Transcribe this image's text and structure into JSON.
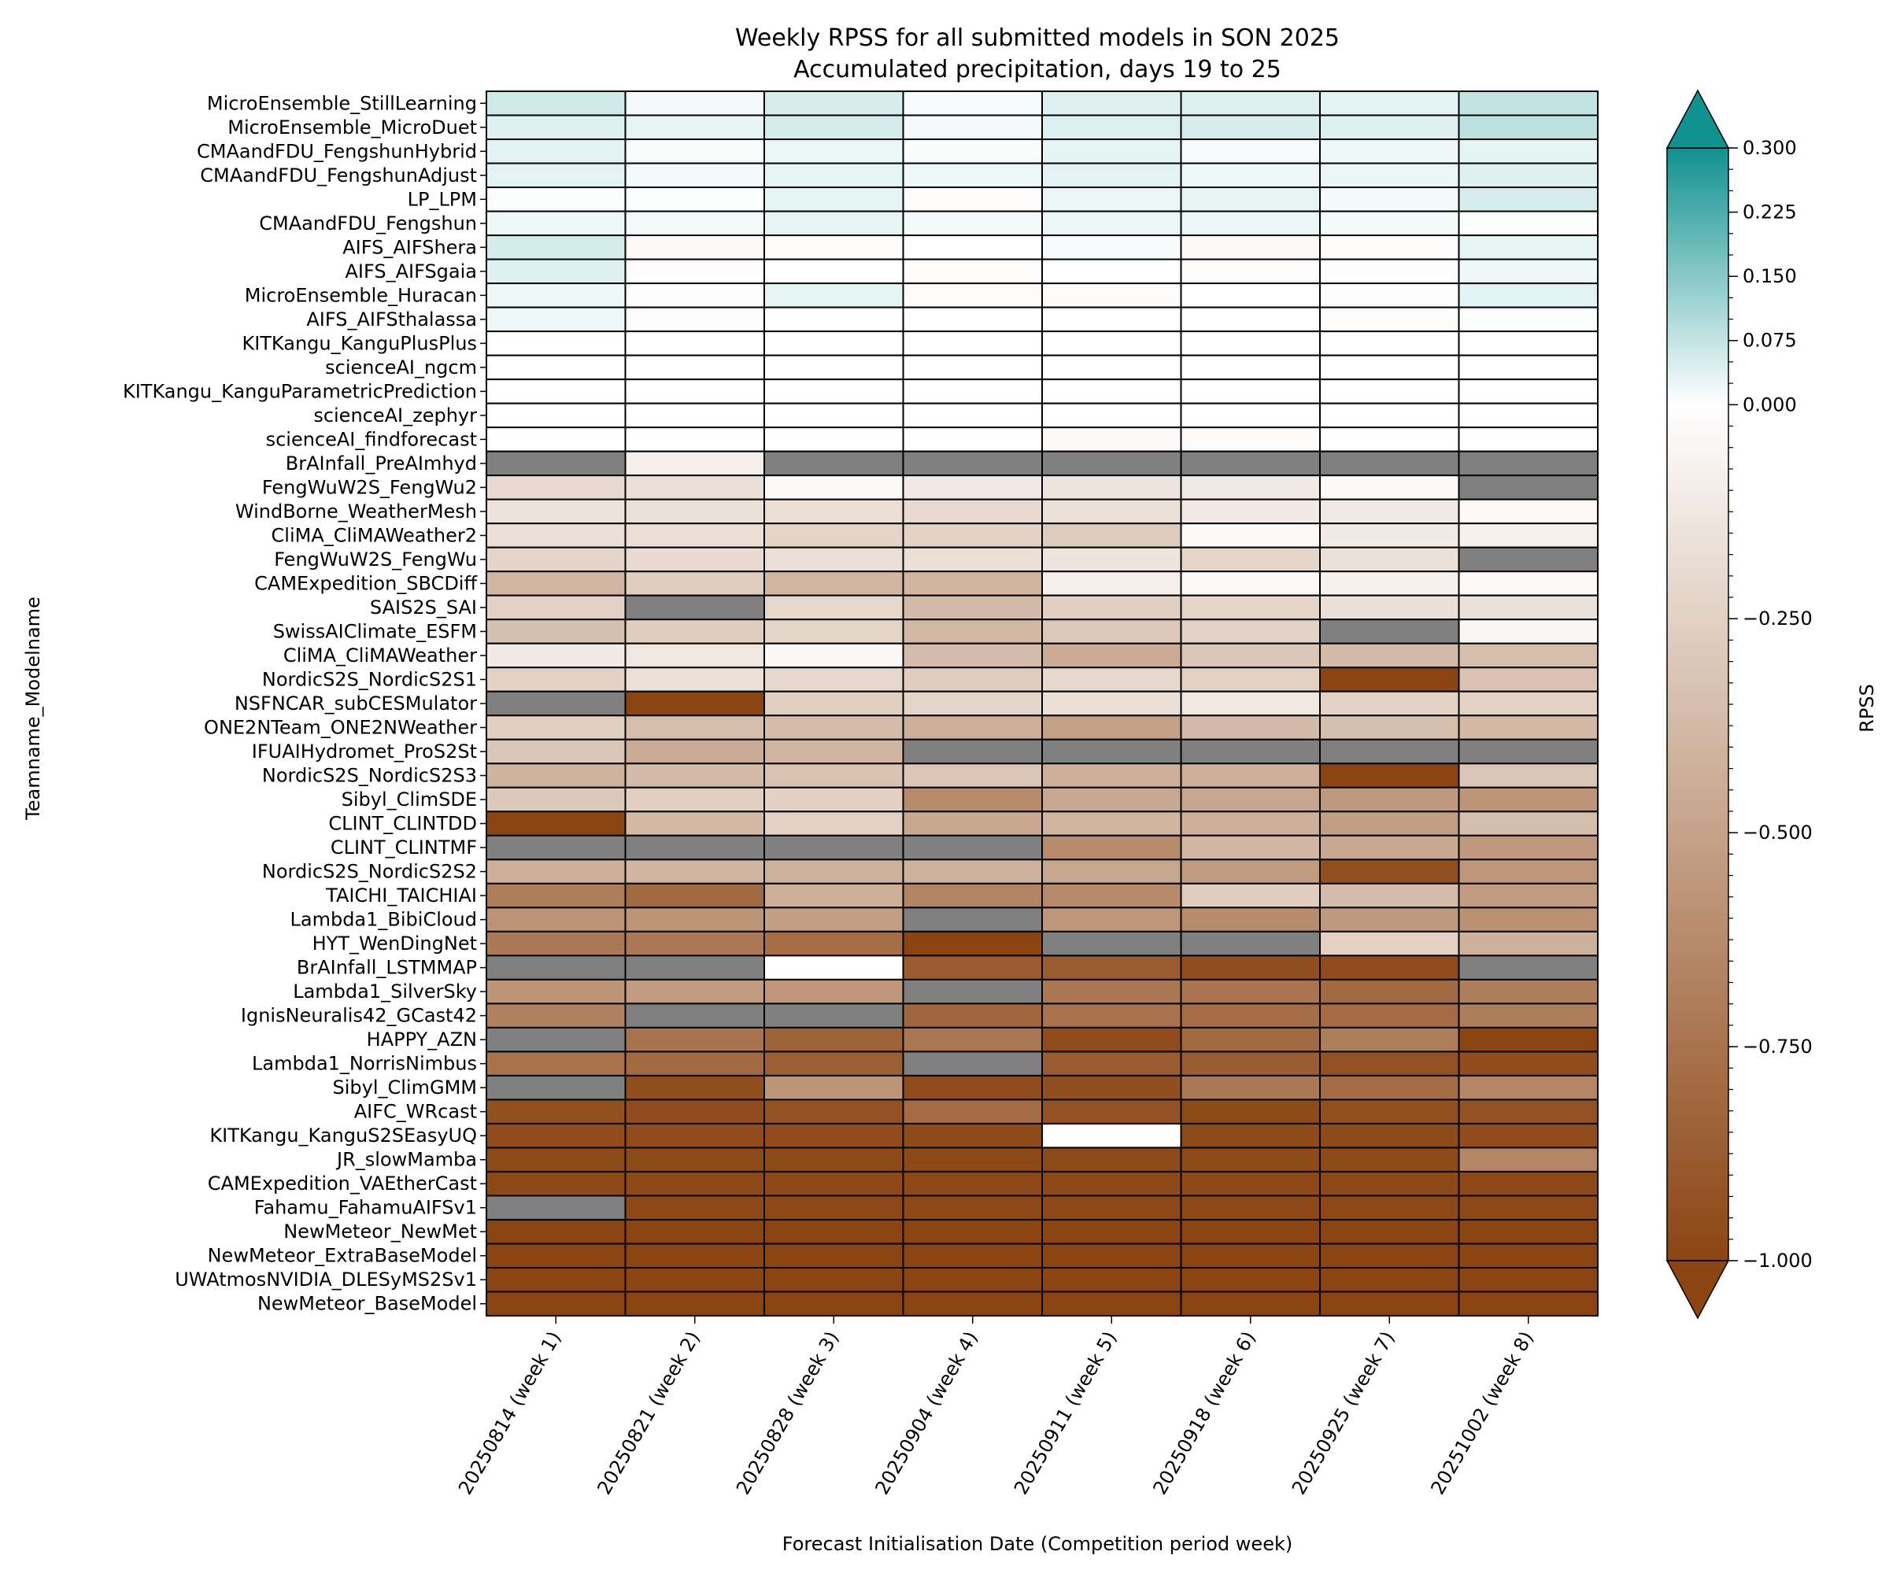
{
  "chart_data": {
    "type": "heatmap",
    "title": "Weekly RPSS for all submitted models in SON 2025",
    "subtitle": "Accumulated precipitation, days 19 to 25",
    "xlabel": "Forecast Initialisation Date (Competition period week)",
    "ylabel": "Teamname_Modelname",
    "colorbar_label": "RPSS",
    "colorbar_ticks": [
      "0.300",
      "0.225",
      "0.150",
      "0.075",
      "0.000",
      "−0.250",
      "−0.500",
      "−0.750",
      "−1.000"
    ],
    "colorbar_tick_values": [
      0.3,
      0.225,
      0.15,
      0.075,
      0.0,
      -0.25,
      -0.5,
      -0.75,
      -1.0
    ],
    "colorbar_range": [
      -1.0,
      0.3
    ],
    "missing_color": "#808080",
    "colors": {
      "positive_max": "#119190",
      "zero": "#ffffff",
      "negative_min": "#8b4513",
      "grid": "#000000"
    },
    "columns": [
      "20250814 (week 1)",
      "20250821 (week 2)",
      "20250828 (week 3)",
      "20250904 (week 4)",
      "20250911 (week 5)",
      "20250918 (week 6)",
      "20250925 (week 7)",
      "20251002 (week 8)"
    ],
    "rows": [
      "MicroEnsemble_StillLearning",
      "MicroEnsemble_MicroDuet",
      "CMAandFDU_FengshunHybrid",
      "CMAandFDU_FengshunAdjust",
      "LP_LPM",
      "CMAandFDU_Fengshun",
      "AIFS_AIFShera",
      "AIFS_AIFSgaia",
      "MicroEnsemble_Huracan",
      "AIFS_AIFSthalassa",
      "KITKangu_KanguPlusPlus",
      "scienceAI_ngcm",
      "KITKangu_KanguParametricPrediction",
      "scienceAI_zephyr",
      "scienceAI_findforecast",
      "BrAInfall_PreAImhyd",
      "FengWuW2S_FengWu2",
      "WindBorne_WeatherMesh",
      "CliMA_CliMAWeather2",
      "FengWuW2S_FengWu",
      "CAMExpedition_SBCDiff",
      "SAIS2S_SAI",
      "SwissAIClimate_ESFM",
      "CliMA_CliMAWeather",
      "NordicS2S_NordicS2S1",
      "NSFNCAR_subCESMulator",
      "ONE2NTeam_ONE2NWeather",
      "IFUAIHydromet_ProS2St",
      "NordicS2S_NordicS2S3",
      "Sibyl_ClimSDE",
      "CLINT_CLINTDD",
      "CLINT_CLINTMF",
      "NordicS2S_NordicS2S2",
      "TAICHI_TAICHIAI",
      "Lambda1_BibiCloud",
      "HYT_WenDingNet",
      "BrAInfall_LSTMMAP",
      "Lambda1_SilverSky",
      "IgnisNeuralis42_GCast42",
      "HAPPY_AZN",
      "Lambda1_NorrisNimbus",
      "Sibyl_ClimGMM",
      "AIFC_WRcast",
      "KITKangu_KanguS2SEasyUQ",
      "JR_slowMamba",
      "CAMExpedition_VAEtherCast",
      "Fahamu_FahamuAIFSv1",
      "NewMeteor_NewMet",
      "NewMeteor_ExtraBaseModel",
      "UWAtmosNVIDIA_DLESyMS2Sv1",
      "NewMeteor_BaseModel"
    ],
    "values": [
      [
        0.06,
        0.015,
        0.05,
        0.01,
        0.04,
        0.045,
        0.035,
        0.075
      ],
      [
        0.04,
        0.03,
        0.055,
        0.015,
        0.045,
        0.05,
        0.04,
        0.085
      ],
      [
        0.035,
        0.005,
        0.025,
        0.005,
        0.03,
        0.01,
        0.02,
        0.03
      ],
      [
        0.035,
        0.015,
        0.03,
        0.02,
        0.035,
        0.02,
        0.025,
        0.04
      ],
      [
        0.005,
        0.005,
        0.03,
        -0.02,
        0.025,
        0.03,
        0.015,
        0.05
      ],
      [
        0.02,
        0.015,
        0.03,
        0.015,
        0.025,
        0.025,
        0.015,
        0.005
      ],
      [
        0.055,
        -0.03,
        -0.02,
        0.0,
        0.01,
        -0.03,
        -0.015,
        0.03
      ],
      [
        0.04,
        -0.01,
        -0.005,
        -0.015,
        0.0,
        -0.015,
        -0.01,
        0.02
      ],
      [
        0.02,
        -0.01,
        0.03,
        -0.02,
        -0.02,
        0.0,
        -0.01,
        0.035
      ],
      [
        0.02,
        -0.01,
        0.0,
        -0.005,
        0.0,
        0.0,
        -0.02,
        0.005
      ],
      [
        0.0,
        0.0,
        0.0,
        0.0,
        0.0,
        0.0,
        0.0,
        0.0
      ],
      [
        0.0,
        0.0,
        0.0,
        0.0,
        0.0,
        0.0,
        0.0,
        0.0
      ],
      [
        0.0,
        0.0,
        0.0,
        0.0,
        0.0,
        0.0,
        0.0,
        0.0
      ],
      [
        0.0,
        0.0,
        0.0,
        0.0,
        0.0,
        0.0,
        0.0,
        0.0
      ],
      [
        0.0,
        0.0,
        0.0,
        0.0,
        -0.03,
        -0.02,
        0.0,
        0.0
      ],
      [
        null,
        -0.09,
        null,
        null,
        null,
        null,
        null,
        null
      ],
      [
        -0.2,
        -0.17,
        -0.03,
        -0.12,
        -0.14,
        -0.11,
        -0.03,
        null
      ],
      [
        -0.15,
        -0.16,
        -0.18,
        -0.2,
        -0.16,
        -0.11,
        -0.12,
        -0.03
      ],
      [
        -0.17,
        -0.18,
        -0.23,
        -0.25,
        -0.28,
        -0.03,
        -0.11,
        -0.08
      ],
      [
        -0.23,
        -0.2,
        -0.17,
        -0.18,
        -0.14,
        -0.22,
        -0.16,
        null
      ],
      [
        -0.39,
        -0.27,
        -0.39,
        -0.4,
        -0.09,
        -0.03,
        -0.08,
        -0.03
      ],
      [
        -0.25,
        null,
        -0.21,
        -0.37,
        -0.26,
        -0.23,
        -0.17,
        -0.16
      ],
      [
        -0.34,
        -0.27,
        -0.23,
        -0.38,
        -0.3,
        -0.24,
        null,
        -0.05
      ],
      [
        -0.11,
        -0.13,
        -0.04,
        -0.36,
        -0.45,
        -0.31,
        -0.37,
        -0.35
      ],
      [
        -0.25,
        -0.16,
        -0.21,
        -0.27,
        -0.21,
        -0.25,
        -1.0,
        -0.33
      ],
      [
        null,
        -1.0,
        -0.26,
        -0.23,
        -0.18,
        -0.13,
        -0.24,
        -0.25
      ],
      [
        -0.26,
        -0.35,
        -0.36,
        -0.43,
        -0.51,
        -0.37,
        -0.34,
        -0.38
      ],
      [
        -0.31,
        -0.45,
        -0.4,
        null,
        null,
        null,
        null,
        null
      ],
      [
        -0.41,
        -0.37,
        -0.33,
        -0.31,
        -0.43,
        -0.43,
        -1.0,
        -0.31
      ],
      [
        -0.29,
        -0.26,
        -0.25,
        -0.62,
        -0.47,
        -0.48,
        -0.55,
        -0.57
      ],
      [
        -1.0,
        -0.38,
        -0.25,
        -0.47,
        -0.4,
        -0.43,
        -0.52,
        -0.35
      ],
      [
        null,
        null,
        null,
        null,
        -0.62,
        -0.39,
        -0.47,
        -0.55
      ],
      [
        -0.43,
        -0.4,
        -0.42,
        -0.42,
        -0.48,
        -0.54,
        -0.94,
        -0.56
      ],
      [
        -0.7,
        -0.8,
        -0.43,
        -0.66,
        -0.63,
        -0.27,
        -0.36,
        -0.54
      ],
      [
        -0.58,
        -0.57,
        -0.52,
        null,
        -0.56,
        -0.62,
        -0.55,
        -0.59
      ],
      [
        -0.72,
        -0.72,
        -0.78,
        -1.0,
        null,
        null,
        -0.25,
        -0.42
      ],
      [
        null,
        null,
        0.0,
        -0.88,
        -0.88,
        -0.95,
        -0.96,
        null
      ],
      [
        -0.57,
        -0.54,
        -0.56,
        null,
        -0.73,
        -0.74,
        -0.8,
        -0.7
      ],
      [
        -0.68,
        null,
        null,
        -0.82,
        -0.76,
        -0.78,
        -0.79,
        -0.7
      ],
      [
        null,
        -0.75,
        -0.84,
        -0.73,
        -0.96,
        -0.8,
        -0.7,
        -1.0
      ],
      [
        -0.76,
        -0.8,
        -0.86,
        null,
        -0.88,
        -0.87,
        -0.93,
        -0.96
      ],
      [
        null,
        -0.95,
        -0.57,
        -0.96,
        -0.95,
        -0.72,
        -0.79,
        -0.65
      ],
      [
        -0.94,
        -0.96,
        -0.93,
        -0.79,
        -0.93,
        -0.97,
        -0.94,
        -0.93
      ],
      [
        -0.96,
        -0.96,
        -0.96,
        -0.97,
        0.0,
        -0.97,
        -0.97,
        -0.96
      ],
      [
        -0.97,
        -0.97,
        -0.97,
        -0.98,
        -0.97,
        -0.97,
        -0.97,
        -0.65
      ],
      [
        -0.98,
        -0.98,
        -0.98,
        -0.98,
        -0.98,
        -0.98,
        -0.98,
        -0.98
      ],
      [
        null,
        -0.98,
        -0.98,
        -0.98,
        -0.98,
        -0.98,
        -0.98,
        -0.98
      ],
      [
        -1.0,
        -1.0,
        -1.0,
        -1.0,
        -1.0,
        -1.0,
        -1.0,
        -1.0
      ],
      [
        -1.0,
        -1.0,
        -1.0,
        -1.0,
        -1.0,
        -1.0,
        -1.0,
        -1.0
      ],
      [
        -1.0,
        -1.0,
        -1.0,
        -1.0,
        -1.0,
        -1.0,
        -1.0,
        -1.0
      ],
      [
        -1.0,
        -1.0,
        -1.0,
        -1.0,
        -1.0,
        -1.0,
        -1.0,
        -1.0
      ]
    ]
  }
}
